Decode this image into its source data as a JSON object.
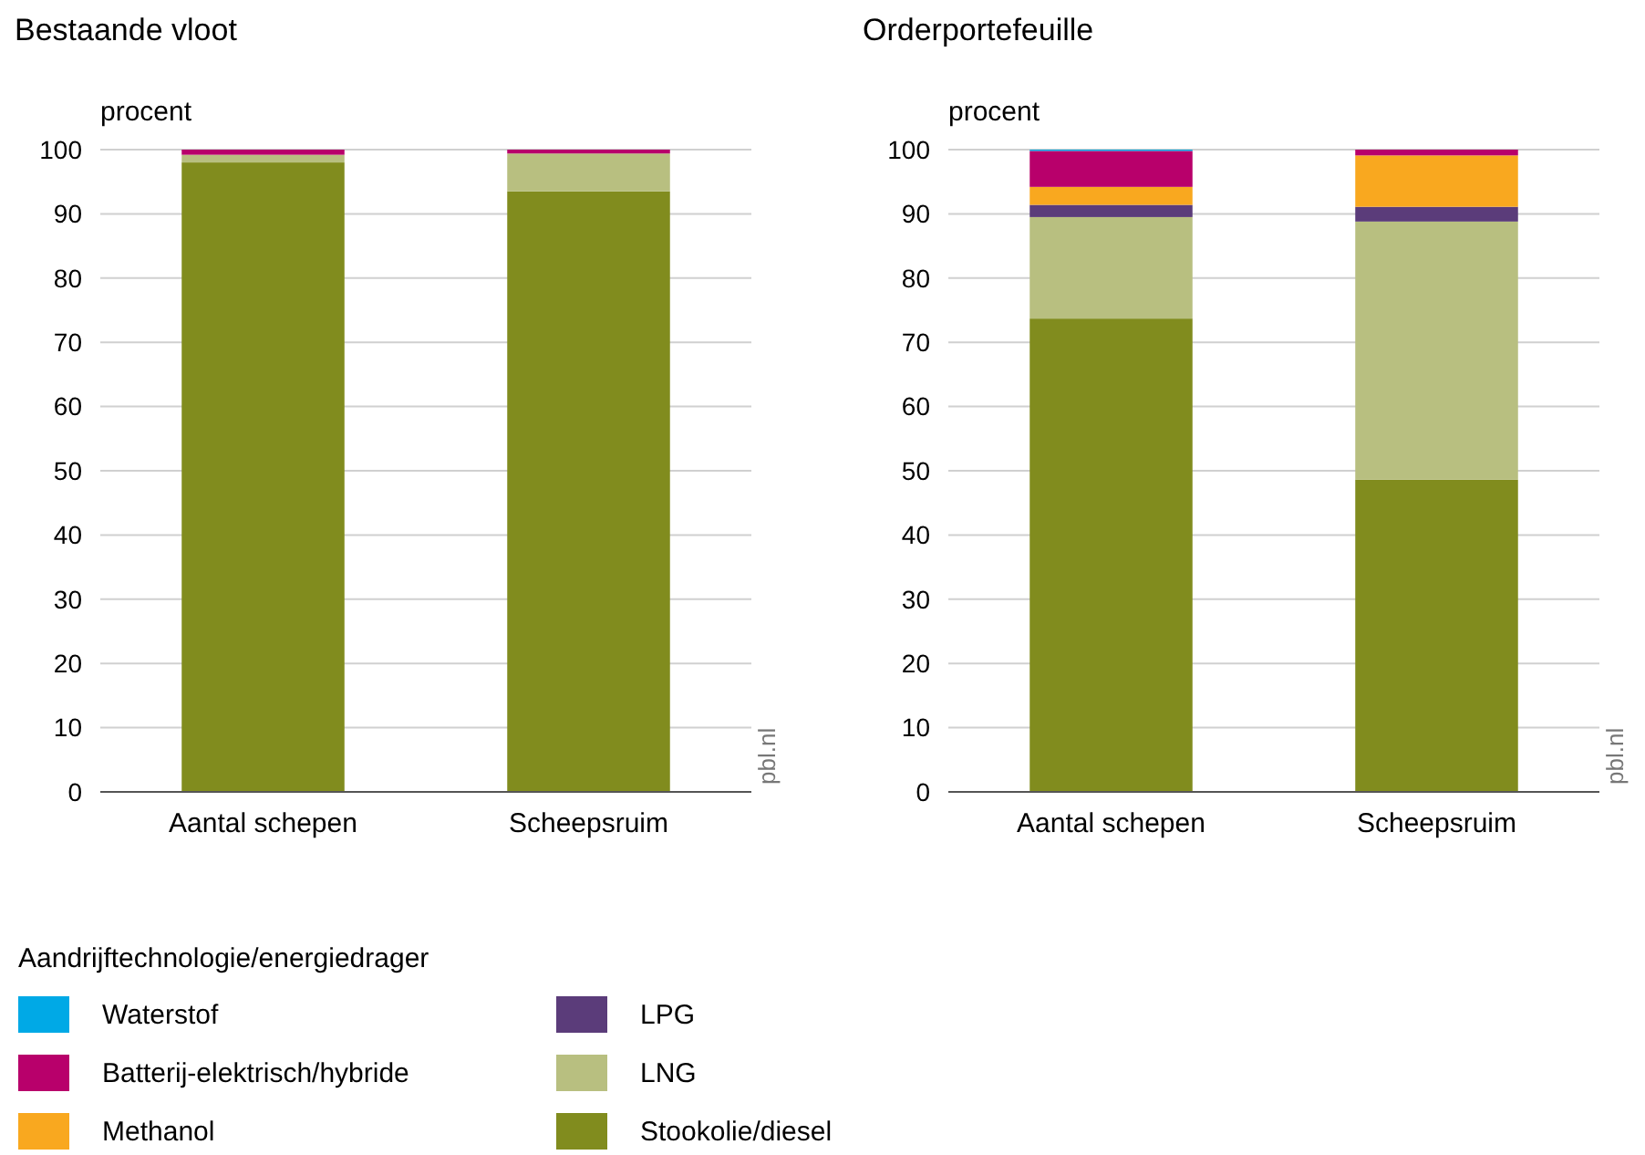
{
  "chart_data": [
    {
      "type": "bar",
      "title": "Bestaande vloot",
      "ylabel": "procent",
      "categories": [
        "Aantal schepen",
        "Scheepsruim"
      ],
      "stacked": true,
      "ylim": [
        0,
        100
      ],
      "yticks": [
        0,
        10,
        20,
        30,
        40,
        50,
        60,
        70,
        80,
        90,
        100
      ],
      "grid": "y",
      "annotations": [
        "pbl.nl"
      ],
      "series": [
        {
          "color": "#818c1e",
          "values": [
            98,
            93.5
          ]
        },
        {
          "color": "#b8bf80",
          "values": [
            1.2,
            5.9
          ]
        },
        {
          "color": "#b8006b",
          "values": [
            0.8,
            0.6
          ]
        }
      ]
    },
    {
      "type": "bar",
      "title": "Orderportefeuille",
      "ylabel": "procent",
      "categories": [
        "Aantal schepen",
        "Scheepsruim"
      ],
      "stacked": true,
      "ylim": [
        0,
        100
      ],
      "yticks": [
        0,
        10,
        20,
        30,
        40,
        50,
        60,
        70,
        80,
        90,
        100
      ],
      "grid": "y",
      "annotations": [
        "pbl.nl"
      ],
      "legend": "bottom",
      "legend_title": "Aandrijftechnologie/energiedrager",
      "series": [
        {
          "name": "Stookolie/diesel",
          "color": "#818c1e",
          "values": [
            73.7,
            48.6
          ]
        },
        {
          "name": "LNG",
          "color": "#b8bf80",
          "values": [
            15.8,
            40.2
          ]
        },
        {
          "name": "LPG",
          "color": "#5b3c7a",
          "values": [
            1.9,
            2.3
          ]
        },
        {
          "name": "Methanol",
          "color": "#f9a81f",
          "values": [
            2.8,
            8.0
          ]
        },
        {
          "name": "Batterij-elektrisch/hybride",
          "color": "#b8006b",
          "values": [
            5.6,
            0.9
          ]
        },
        {
          "name": "Waterstof",
          "color": "#00a9e6",
          "values": [
            0.2,
            0
          ]
        }
      ]
    }
  ]
}
